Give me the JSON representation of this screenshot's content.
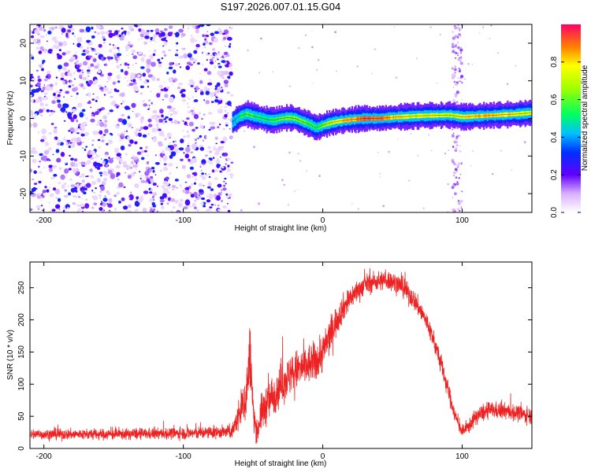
{
  "figure": {
    "title": "S197.2026.007.01.15.G04"
  },
  "chart_data": [
    {
      "type": "heatmap",
      "name": "spectrogram",
      "title": "S197.2026.007.01.15.G04",
      "xlabel": "Height of straight line (km)",
      "ylabel": "Frequency (Hz)",
      "xlim": [
        -210,
        150
      ],
      "ylim": [
        -25,
        25
      ],
      "x_ticks": [
        -200,
        -100,
        0,
        100
      ],
      "y_ticks": [
        -20,
        -10,
        0,
        10,
        20
      ],
      "noise_region_x": [
        -210,
        -65
      ],
      "signal_start_x": -65,
      "line_track": {
        "x": [
          -65,
          -60,
          -55,
          -50,
          -45,
          -40,
          -35,
          -30,
          -25,
          -20,
          -15,
          -10,
          -5,
          0,
          5,
          10,
          20,
          30,
          40,
          50,
          60,
          70,
          80,
          90,
          95,
          100,
          110,
          120,
          130,
          140,
          150
        ],
        "y": [
          -1.0,
          0.5,
          1.2,
          0.6,
          0.2,
          -0.3,
          -0.5,
          0.0,
          0.2,
          0.0,
          -0.8,
          -1.5,
          -2.5,
          -1.8,
          -1.2,
          -0.8,
          -0.3,
          0.0,
          0.0,
          0.3,
          0.5,
          0.7,
          0.8,
          0.9,
          0.7,
          0.4,
          0.6,
          0.8,
          1.0,
          1.2,
          1.5
        ],
        "amplitude": [
          0.4,
          0.5,
          0.55,
          0.55,
          0.5,
          0.5,
          0.55,
          0.6,
          0.6,
          0.6,
          0.6,
          0.55,
          0.5,
          0.6,
          0.7,
          0.75,
          0.85,
          0.9,
          0.9,
          0.8,
          0.75,
          0.75,
          0.75,
          0.7,
          0.7,
          0.75,
          0.8,
          0.8,
          0.8,
          0.75,
          0.75
        ]
      },
      "interference_band_x": [
        93,
        100
      ],
      "colorbar": {
        "label": "Normalized spectral amplitude",
        "range": [
          0.0,
          1.0
        ],
        "ticks": [
          0.0,
          0.2,
          0.4,
          0.6,
          0.8
        ],
        "tick_labels": [
          "0.0",
          "0.2",
          "0.4",
          "0.6",
          "0.8"
        ]
      }
    },
    {
      "type": "line",
      "name": "snr",
      "xlabel": "Height of straight line (km)",
      "ylabel": "SNR (10 * v/v)",
      "xlim": [
        -210,
        150
      ],
      "ylim": [
        0,
        290
      ],
      "x_ticks": [
        -200,
        -100,
        0,
        100
      ],
      "y_ticks": [
        0,
        50,
        100,
        150,
        200,
        250
      ],
      "color": "#ee2222",
      "envelope": {
        "x": [
          -210,
          -180,
          -150,
          -120,
          -90,
          -65,
          -55,
          -52,
          -50,
          -47,
          -45,
          -40,
          -35,
          -30,
          -25,
          -20,
          -15,
          -10,
          -5,
          0,
          5,
          10,
          15,
          20,
          25,
          30,
          35,
          40,
          45,
          50,
          55,
          60,
          65,
          70,
          75,
          80,
          85,
          90,
          95,
          100,
          105,
          110,
          120,
          130,
          140,
          150
        ],
        "mean": [
          22,
          22,
          22,
          23,
          24,
          26,
          80,
          150,
          60,
          20,
          50,
          70,
          85,
          100,
          110,
          120,
          125,
          130,
          135,
          150,
          175,
          200,
          220,
          235,
          245,
          255,
          258,
          260,
          262,
          260,
          255,
          245,
          232,
          215,
          195,
          165,
          130,
          90,
          50,
          25,
          35,
          50,
          60,
          58,
          55,
          50
        ],
        "noise": [
          12,
          12,
          12,
          12,
          14,
          14,
          60,
          70,
          45,
          20,
          40,
          45,
          45,
          45,
          45,
          45,
          45,
          45,
          45,
          45,
          40,
          35,
          30,
          25,
          25,
          22,
          22,
          22,
          22,
          22,
          22,
          22,
          22,
          22,
          22,
          22,
          22,
          20,
          16,
          12,
          16,
          18,
          18,
          18,
          18,
          18
        ]
      }
    }
  ]
}
